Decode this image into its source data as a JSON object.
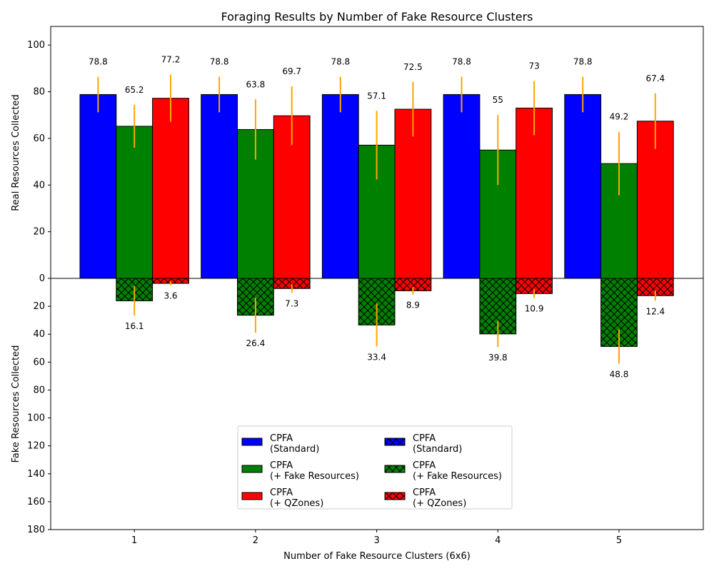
{
  "chart_data": {
    "type": "bar",
    "title": "Foraging Results by Number of Fake Resource Clusters",
    "xlabel": "Number of Fake Resource Clusters (6x6)",
    "ylabel_top": "Real Resources Collected",
    "ylabel_bottom": "Fake Resources Collected",
    "categories": [
      "1",
      "2",
      "3",
      "4",
      "5"
    ],
    "top_ylim": [
      0,
      108
    ],
    "top_ticks": [
      "0",
      "20",
      "40",
      "60",
      "80",
      "100"
    ],
    "bottom_ylim": [
      0,
      180
    ],
    "bottom_ticks": [
      "0",
      "20",
      "40",
      "60",
      "80",
      "100",
      "120",
      "140",
      "160",
      "180"
    ],
    "grid": false,
    "legend_position": "lower-center",
    "error_color": "#ffa500",
    "series": [
      {
        "name": "CPFA\n(Standard)",
        "color": "#0000ff",
        "real": [
          78.8,
          78.8,
          78.8,
          78.8,
          78.8
        ],
        "real_err": [
          7.6,
          7.6,
          7.6,
          7.6,
          7.6
        ],
        "real_labels": [
          "78.8",
          "78.8",
          "78.8",
          "78.8",
          "78.8"
        ],
        "fake": [
          0,
          0,
          0,
          0,
          0
        ],
        "fake_err": [
          0,
          0,
          0,
          0,
          0
        ],
        "fake_labels": [
          "",
          "",
          "",
          "",
          ""
        ]
      },
      {
        "name": "CPFA\n(+ Fake Resources)",
        "color": "#008000",
        "real": [
          65.2,
          63.8,
          57.1,
          55,
          49.2
        ],
        "real_err": [
          9.2,
          12.9,
          14.7,
          15,
          13.6
        ],
        "real_labels": [
          "65.2",
          "63.8",
          "57.1",
          "55",
          "49.2"
        ],
        "fake": [
          16.1,
          26.4,
          33.4,
          39.8,
          48.8
        ],
        "fake_err": [
          10.6,
          12.5,
          15.4,
          9.3,
          12.3
        ],
        "fake_labels": [
          "16.1",
          "26.4",
          "33.4",
          "39.8",
          "48.8"
        ]
      },
      {
        "name": "CPFA\n(+ QZones)",
        "color": "#ff0000",
        "real": [
          77.2,
          69.7,
          72.5,
          73,
          67.4
        ],
        "real_err": [
          10.1,
          12.6,
          11.7,
          11.6,
          11.9
        ],
        "real_labels": [
          "77.2",
          "69.7",
          "72.5",
          "73",
          "67.4"
        ],
        "fake": [
          3.6,
          7.3,
          8.9,
          10.9,
          12.4
        ],
        "fake_err": [
          1.3,
          3.1,
          2.7,
          3.2,
          3.6
        ],
        "fake_labels": [
          "3.6",
          "7.3",
          "8.9",
          "10.9",
          "12.4"
        ]
      }
    ]
  }
}
